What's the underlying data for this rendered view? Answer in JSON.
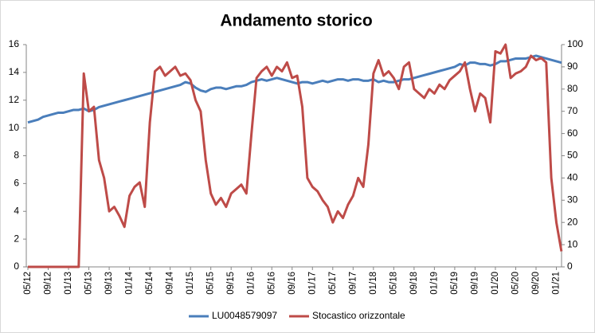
{
  "chart_data": {
    "type": "line",
    "title": "Andamento storico",
    "categories": [
      "05/12",
      null,
      null,
      null,
      "09/12",
      null,
      null,
      null,
      "01/13",
      null,
      null,
      null,
      "05/13",
      null,
      null,
      null,
      "09/13",
      null,
      null,
      null,
      "01/14",
      null,
      null,
      null,
      "05/14",
      null,
      null,
      null,
      "09/14",
      null,
      null,
      null,
      "01/15",
      null,
      null,
      null,
      "05/15",
      null,
      null,
      null,
      "09/15",
      null,
      null,
      null,
      "01/16",
      null,
      null,
      null,
      "05/16",
      null,
      null,
      null,
      "09/16",
      null,
      null,
      null,
      "01/17",
      null,
      null,
      null,
      "05/17",
      null,
      null,
      null,
      "09/17",
      null,
      null,
      null,
      "01/18",
      null,
      null,
      null,
      "05/18",
      null,
      null,
      null,
      "09/18",
      null,
      null,
      null,
      "01/19",
      null,
      null,
      null,
      "05/19",
      null,
      null,
      null,
      "09/19",
      null,
      null,
      null,
      "01/20",
      null,
      null,
      null,
      "05/20",
      null,
      null,
      null,
      "09/20",
      null,
      null,
      null,
      "01/21",
      null
    ],
    "series": [
      {
        "name": "LU0048579097",
        "color": "#4a7ebb",
        "axis": "y",
        "values": [
          10.4,
          10.5,
          10.6,
          10.8,
          10.9,
          11.0,
          11.1,
          11.1,
          11.2,
          11.3,
          11.3,
          11.4,
          11.2,
          11.3,
          11.5,
          11.6,
          11.7,
          11.8,
          11.9,
          12.0,
          12.1,
          12.2,
          12.3,
          12.4,
          12.5,
          12.6,
          12.7,
          12.8,
          12.9,
          13.0,
          13.1,
          13.3,
          13.2,
          12.9,
          12.7,
          12.6,
          12.8,
          12.9,
          12.9,
          12.8,
          12.9,
          13.0,
          13.0,
          13.1,
          13.3,
          13.4,
          13.5,
          13.4,
          13.5,
          13.6,
          13.5,
          13.4,
          13.3,
          13.2,
          13.3,
          13.3,
          13.2,
          13.3,
          13.4,
          13.3,
          13.4,
          13.5,
          13.5,
          13.4,
          13.5,
          13.5,
          13.4,
          13.4,
          13.5,
          13.3,
          13.4,
          13.3,
          13.3,
          13.4,
          13.5,
          13.5,
          13.6,
          13.7,
          13.8,
          13.9,
          14.0,
          14.1,
          14.2,
          14.3,
          14.4,
          14.6,
          14.5,
          14.7,
          14.7,
          14.6,
          14.6,
          14.5,
          14.6,
          14.8,
          14.8,
          14.9,
          15.0,
          15.0,
          15.0,
          15.1,
          15.2,
          15.1,
          15.0,
          14.9,
          14.8,
          14.7
        ]
      },
      {
        "name": "Stocastico orizzontale",
        "color": "#be4b48",
        "axis": "y2",
        "values": [
          0,
          0,
          0,
          0,
          0,
          0,
          0,
          0,
          0,
          0,
          0,
          87,
          70,
          72,
          48,
          40,
          25,
          27,
          23,
          18,
          32,
          36,
          38,
          27,
          65,
          88,
          90,
          86,
          88,
          90,
          86,
          87,
          84,
          75,
          70,
          48,
          33,
          28,
          31,
          27,
          33,
          35,
          37,
          33,
          60,
          85,
          88,
          90,
          86,
          90,
          88,
          92,
          85,
          86,
          72,
          40,
          36,
          34,
          30,
          27,
          20,
          25,
          22,
          28,
          32,
          40,
          36,
          55,
          87,
          93,
          86,
          88,
          85,
          80,
          90,
          92,
          80,
          78,
          76,
          80,
          78,
          82,
          80,
          84,
          86,
          88,
          92,
          80,
          70,
          78,
          76,
          65,
          97,
          96,
          100,
          85,
          87,
          88,
          90,
          95,
          93,
          94,
          92,
          40,
          20,
          7
        ]
      }
    ],
    "ylim": [
      0,
      16
    ],
    "yticks": [
      0,
      2,
      4,
      6,
      8,
      10,
      12,
      14,
      16
    ],
    "y2lim": [
      0,
      100
    ],
    "y2ticks": [
      0,
      10,
      20,
      30,
      40,
      50,
      60,
      70,
      80,
      90,
      100
    ],
    "legend": "bottom"
  }
}
